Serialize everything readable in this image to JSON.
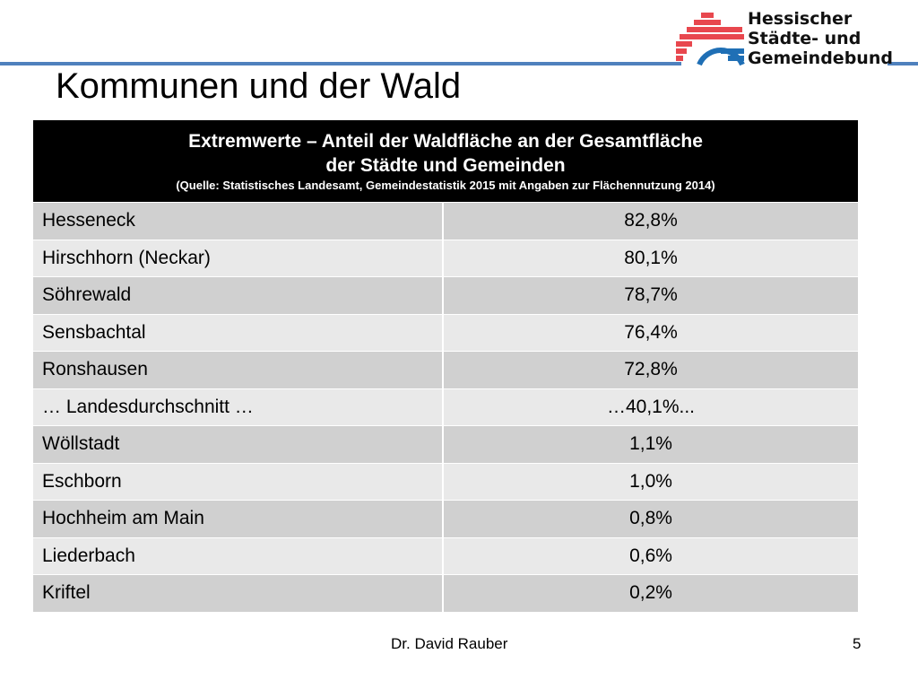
{
  "slide": {
    "title": "Kommunen und der Wald",
    "footer_author": "Dr. David Rauber",
    "page_number": "5"
  },
  "logo": {
    "line1": "Hessischer",
    "line2": "Städte- und",
    "line3": "Gemeindebund",
    "colors": {
      "red": "#e8474e",
      "blue": "#1f6fb5"
    }
  },
  "table": {
    "header_line1": "Extremwerte – Anteil der Waldfläche an der Gesamtfläche",
    "header_line2": "der Städte und Gemeinden",
    "header_source": "(Quelle: Statistisches Landesamt, Gemeindestatistik 2015 mit Angaben zur Flächennutzung 2014)",
    "rows": [
      {
        "name": "Hesseneck",
        "value": "82,8%"
      },
      {
        "name": "Hirschhorn (Neckar)",
        "value": "80,1%"
      },
      {
        "name": "Söhrewald",
        "value": "78,7%"
      },
      {
        "name": "Sensbachtal",
        "value": "76,4%"
      },
      {
        "name": "Ronshausen",
        "value": "72,8%"
      },
      {
        "name": "… Landesdurchschnitt …",
        "value": "…40,1%..."
      },
      {
        "name": "Wöllstadt",
        "value": "1,1%"
      },
      {
        "name": "Eschborn",
        "value": "1,0%"
      },
      {
        "name": "Hochheim am Main",
        "value": "0,8%"
      },
      {
        "name": "Liederbach",
        "value": "0,6%"
      },
      {
        "name": "Kriftel",
        "value": "0,2%"
      }
    ]
  }
}
